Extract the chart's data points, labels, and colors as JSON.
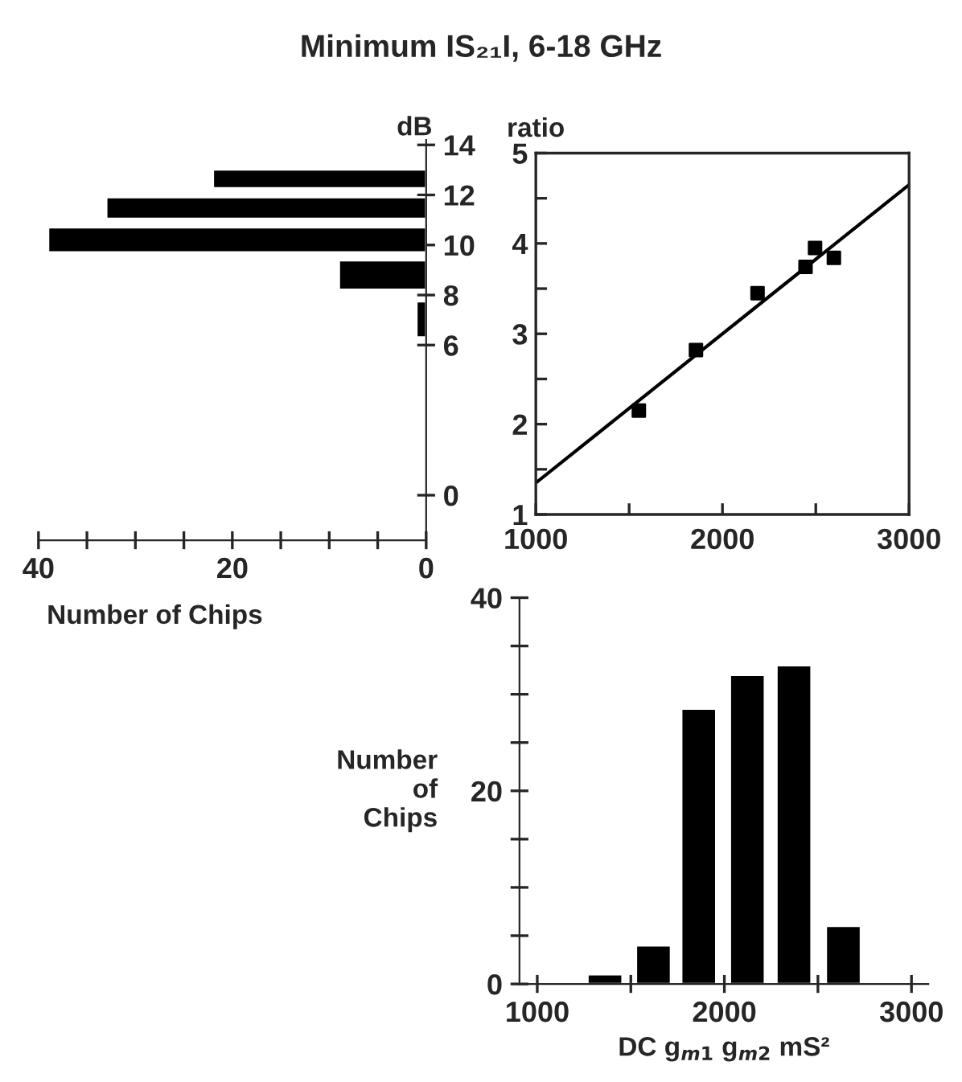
{
  "chart_data": [
    {
      "type": "bar",
      "orientation": "horizontal",
      "title": "Minimum IS₂₁I, 6-18 GHz",
      "ylabel": "dB",
      "xlabel": "Number of Chips",
      "x": [
        12.65,
        11.49,
        10.22,
        8.82,
        7.06
      ],
      "values": [
        22,
        33,
        39,
        9,
        1
      ],
      "color": "#000000",
      "xlim": [
        40,
        0
      ],
      "xticks": [
        40,
        {
          "value": 35,
          "label": null
        },
        {
          "value": 30,
          "label": null
        },
        {
          "value": 25,
          "label": null
        },
        20,
        {
          "value": 15,
          "label": null
        },
        {
          "value": 10,
          "label": null
        },
        {
          "value": 5,
          "label": null
        },
        0
      ],
      "ylim": [
        -1.8,
        14.2
      ],
      "yticks": [
        0,
        6,
        8,
        10,
        12,
        14
      ],
      "grid": false
    },
    {
      "type": "scatter",
      "ylabel": "ratio",
      "series": [
        {
          "type": "scatter",
          "marker": "square",
          "color": "#000000",
          "x": [
            1552,
            1858,
            2188,
            2445,
            2496,
            2597
          ],
          "values": [
            2.15,
            2.82,
            3.45,
            3.74,
            3.95,
            3.84
          ]
        },
        {
          "type": "line",
          "marker": "none",
          "color": "#000000",
          "x": [
            1000,
            3000
          ],
          "values": [
            1.35,
            4.65
          ]
        }
      ],
      "xlim": [
        1000,
        3000
      ],
      "xticks": [
        1000,
        {
          "value": 1500,
          "label": null
        },
        2000,
        {
          "value": 2500,
          "label": null
        },
        3000
      ],
      "ylim": [
        1,
        5
      ],
      "yticks": [
        1,
        {
          "value": 1.5,
          "label": null
        },
        2,
        {
          "value": 2.5,
          "label": null
        },
        3,
        {
          "value": 3.5,
          "label": null
        },
        4,
        {
          "value": 4.5,
          "label": null
        },
        5
      ],
      "grid": false
    },
    {
      "type": "bar",
      "ylabel": "Number\nof\nChips",
      "xlabel": "DC g$_{m1}$ g$_{m2}$ mS²",
      "x": [
        1362,
        1621,
        1863,
        2123,
        2372,
        2636
      ],
      "values": [
        1,
        4,
        28.5,
        32,
        33,
        6
      ],
      "color": "#000000",
      "xlim": [
        905,
        3090
      ],
      "xticks": [
        1000,
        {
          "value": 1500,
          "label": null
        },
        2000,
        {
          "value": 2500,
          "label": null
        },
        3000
      ],
      "ylim": [
        0,
        40
      ],
      "yticks": [
        0,
        {
          "value": 5,
          "label": null
        },
        {
          "value": 10,
          "label": null
        },
        {
          "value": 15,
          "label": null
        },
        20,
        {
          "value": 25,
          "label": null
        },
        {
          "value": 30,
          "label": null
        },
        {
          "value": 35,
          "label": null
        },
        40
      ],
      "grid": false
    }
  ]
}
